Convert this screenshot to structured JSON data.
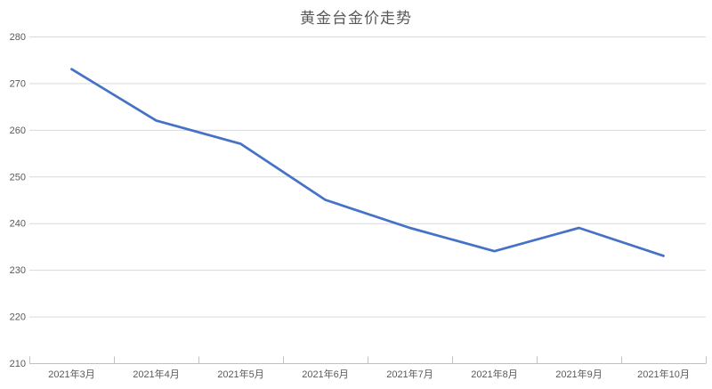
{
  "title": "黄金台金价走势",
  "colors": {
    "line": "#4472C4",
    "gridline": "#D9D9D9",
    "axis_line": "#C0C0C0",
    "tick": "#C0C0C0",
    "label_text": "#595959",
    "background": "#FFFFFF"
  },
  "chart_data": {
    "type": "line",
    "title": "黄金台金价走势",
    "categories": [
      "2021年3月",
      "2021年4月",
      "2021年5月",
      "2021年6月",
      "2021年7月",
      "2021年8月",
      "2021年9月",
      "2021年10月"
    ],
    "values": [
      273,
      262,
      257,
      245,
      239,
      234,
      239,
      233
    ],
    "xlabel": "",
    "ylabel": "",
    "ylim": [
      210,
      280
    ],
    "yticks": [
      210,
      220,
      230,
      240,
      250,
      260,
      270,
      280
    ],
    "grid": true,
    "legend_position": "none",
    "line_width": 2.75
  }
}
